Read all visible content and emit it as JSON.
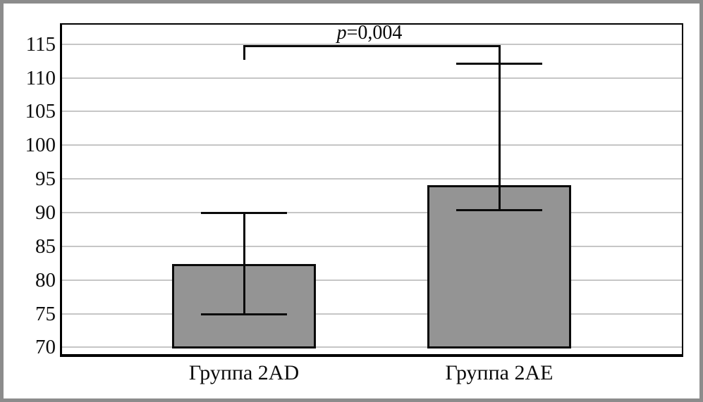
{
  "figure": {
    "frame_color": "#8c8c8c",
    "background": "#ffffff"
  },
  "chart_data": {
    "type": "bar",
    "title": "",
    "xlabel": "",
    "ylabel": "",
    "categories": [
      "Группа 2AD",
      "Группа 2АЕ"
    ],
    "series": [
      {
        "name": "values",
        "values": [
          82.2,
          93.9
        ]
      }
    ],
    "error_bars": {
      "low": [
        74.9,
        90.4
      ],
      "high": [
        90.0,
        112.1
      ]
    },
    "baseline": 70,
    "yticks": [
      70,
      75,
      80,
      85,
      90,
      95,
      100,
      105,
      110,
      115
    ],
    "ytick_labels": [
      "70",
      "75",
      "80",
      "85",
      "90",
      "95",
      "100",
      "105",
      "110",
      "115"
    ],
    "ylim": [
      69.0,
      117.9
    ],
    "grid": true,
    "legend": false,
    "bar_color": "#949494",
    "bar_border_color": "#0a0a0a",
    "gridline_color": "#c6c6c6",
    "annotation": {
      "full": "p=0,004",
      "symbol": "p",
      "text": "=0,004",
      "connects": [
        0,
        1
      ],
      "y_value": 114.9
    }
  }
}
